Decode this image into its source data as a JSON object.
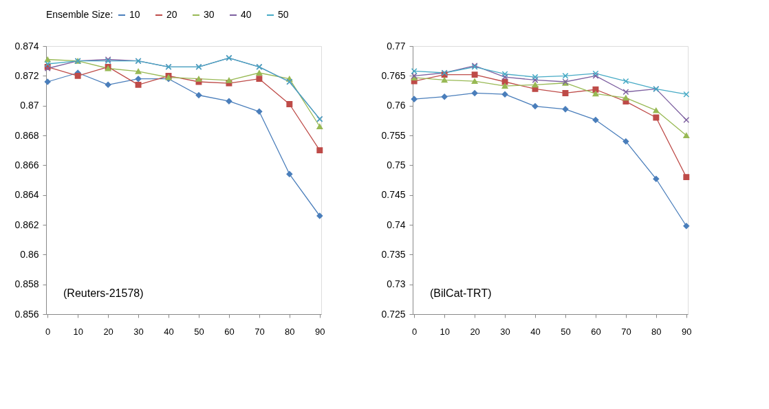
{
  "chart_data": [
    {
      "type": "line",
      "legend_title": "Ensemble Size:",
      "legend": "top",
      "grid": false,
      "line_style": "solid",
      "categories": [
        "0",
        "10",
        "20",
        "30",
        "40",
        "50",
        "60",
        "70",
        "80",
        "90"
      ],
      "ylim": [
        0.856,
        0.874
      ],
      "yticks": [
        0.856,
        0.858,
        0.86,
        0.862,
        0.864,
        0.866,
        0.868,
        0.87,
        0.872,
        0.874
      ],
      "annotations": [
        "(Reuters-21578)"
      ],
      "series": [
        {
          "name": "10",
          "color": "#4a7ebb",
          "marker": "diamond",
          "values": [
            0.8716,
            0.8722,
            0.8714,
            0.8718,
            0.8718,
            0.8707,
            0.8703,
            0.8696,
            0.8654,
            0.8626
          ]
        },
        {
          "name": "20",
          "color": "#be4b48",
          "marker": "square",
          "values": [
            0.8726,
            0.872,
            0.8726,
            0.8714,
            0.872,
            0.8716,
            0.8715,
            0.8718,
            0.8701,
            0.867
          ]
        },
        {
          "name": "30",
          "color": "#98b954",
          "marker": "triangle",
          "values": [
            0.8731,
            0.873,
            0.8725,
            0.8723,
            0.8719,
            0.8718,
            0.8717,
            0.8722,
            0.8718,
            0.8686
          ]
        },
        {
          "name": "40",
          "color": "#7d60a0",
          "marker": "cross",
          "values": [
            0.8725,
            0.873,
            0.8731,
            0.873,
            0.8726,
            0.8726,
            0.8732,
            0.8726,
            0.8716,
            0.8691
          ]
        },
        {
          "name": "50",
          "color": "#46aac5",
          "marker": "cross",
          "values": [
            0.8728,
            0.873,
            0.873,
            0.873,
            0.8726,
            0.8726,
            0.8732,
            0.8726,
            0.8716,
            0.8691
          ]
        }
      ]
    },
    {
      "type": "line",
      "legend": false,
      "grid": false,
      "line_style": "solid",
      "categories": [
        "0",
        "10",
        "20",
        "30",
        "40",
        "50",
        "60",
        "70",
        "80",
        "90"
      ],
      "ylim": [
        0.725,
        0.77
      ],
      "yticks": [
        0.725,
        0.73,
        0.735,
        0.74,
        0.745,
        0.75,
        0.755,
        0.76,
        0.765,
        0.77
      ],
      "annotations": [
        "(BilCat-TRT)"
      ],
      "series": [
        {
          "name": "10",
          "color": "#4a7ebb",
          "marker": "diamond",
          "values": [
            0.7611,
            0.7615,
            0.7621,
            0.7619,
            0.7599,
            0.7594,
            0.7576,
            0.754,
            0.7477,
            0.7398
          ]
        },
        {
          "name": "20",
          "color": "#be4b48",
          "marker": "square",
          "values": [
            0.7641,
            0.7652,
            0.7652,
            0.764,
            0.7628,
            0.7621,
            0.7627,
            0.7607,
            0.758,
            0.748
          ]
        },
        {
          "name": "30",
          "color": "#98b954",
          "marker": "triangle",
          "values": [
            0.7647,
            0.7643,
            0.7641,
            0.7633,
            0.7635,
            0.7638,
            0.762,
            0.7613,
            0.7592,
            0.755
          ]
        },
        {
          "name": "40",
          "color": "#7d60a0",
          "marker": "cross",
          "values": [
            0.765,
            0.7655,
            0.7667,
            0.7648,
            0.7643,
            0.764,
            0.765,
            0.7623,
            0.7628,
            0.7576
          ]
        },
        {
          "name": "50",
          "color": "#46aac5",
          "marker": "cross",
          "values": [
            0.7658,
            0.7655,
            0.7665,
            0.7653,
            0.7648,
            0.765,
            0.7654,
            0.7641,
            0.7628,
            0.7619
          ]
        }
      ]
    }
  ]
}
